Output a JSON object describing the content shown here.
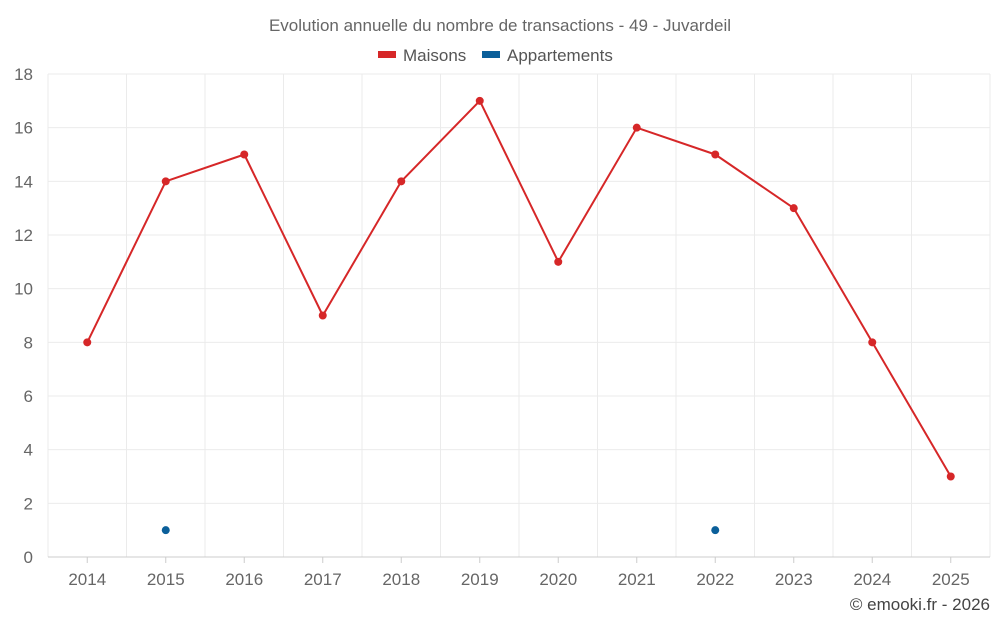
{
  "chart_data": {
    "type": "line",
    "title": "Evolution annuelle du nombre de transactions - 49 - Juvardeil",
    "categories": [
      "2014",
      "2015",
      "2016",
      "2017",
      "2018",
      "2019",
      "2020",
      "2021",
      "2022",
      "2023",
      "2024",
      "2025"
    ],
    "series": [
      {
        "name": "Maisons",
        "color": "#d62728",
        "values": [
          8,
          14,
          15,
          9,
          14,
          17,
          11,
          16,
          15,
          13,
          8,
          3
        ]
      },
      {
        "name": "Appartements",
        "color": "#0b5f9a",
        "values": [
          null,
          1,
          null,
          null,
          null,
          null,
          null,
          null,
          1,
          null,
          null,
          null
        ]
      }
    ],
    "ylim": [
      0,
      18
    ],
    "yticks": [
      0,
      2,
      4,
      6,
      8,
      10,
      12,
      14,
      16,
      18
    ],
    "grid": true,
    "legend_position": "top-center",
    "credit": "© emooki.fr - 2026"
  }
}
